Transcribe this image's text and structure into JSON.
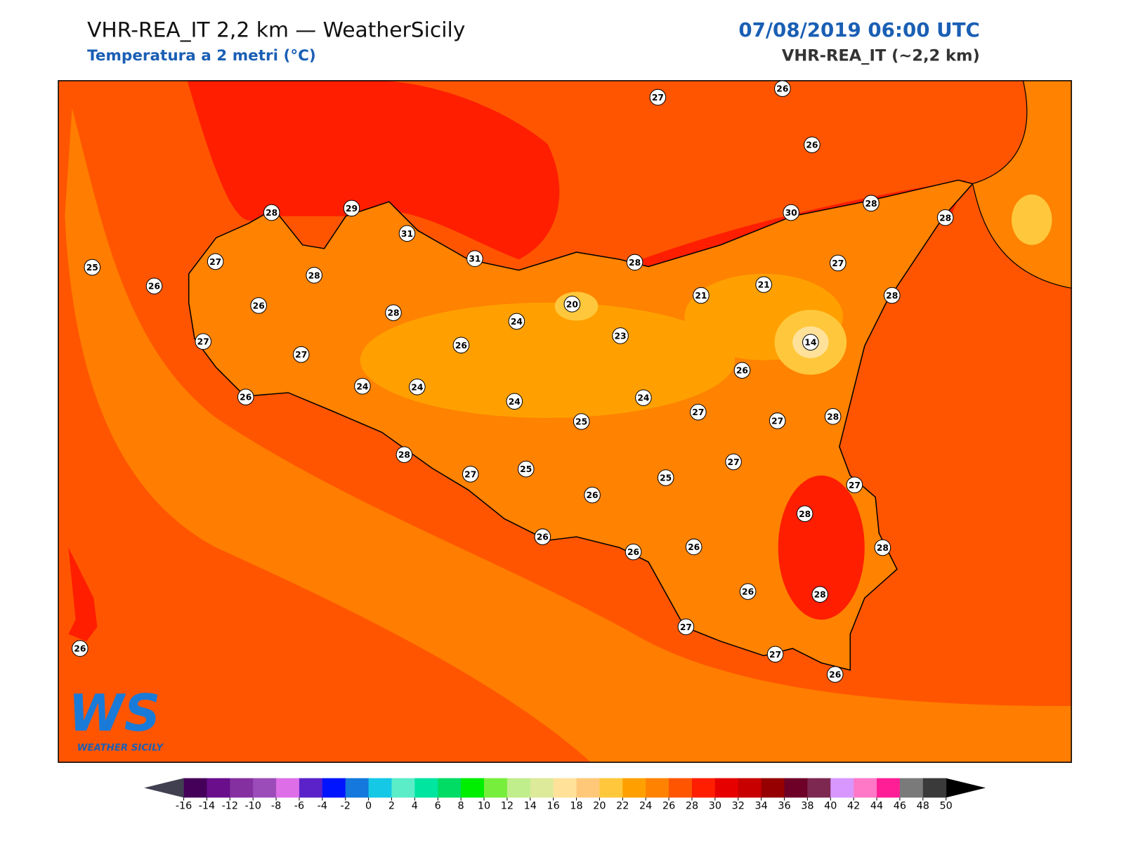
{
  "header": {
    "title": "VHR-REA_IT 2,2 km — WeatherSicily",
    "subtitle": "Temperatura a 2 metri (°C)",
    "datetime": "07/08/2019 06:00 UTC",
    "model": "VHR-REA_IT (~2,2 km)"
  },
  "stations": [
    27,
    26,
    26,
    28,
    29,
    31,
    31,
    30,
    28,
    28,
    25,
    27,
    26,
    28,
    28,
    27,
    26,
    28,
    20,
    24,
    21,
    21,
    28,
    23,
    14,
    27,
    27,
    26,
    24,
    24,
    26,
    26,
    24,
    24,
    25,
    27,
    27,
    28,
    28,
    27,
    25,
    27,
    25,
    26,
    27,
    28,
    26,
    26,
    26,
    28,
    26,
    28,
    27,
    26,
    27,
    26
  ],
  "logo": {
    "mark": "WS",
    "name": "WEATHER SICILY"
  },
  "colorbar": {
    "ticks": [
      -16,
      -14,
      -12,
      -10,
      -8,
      -6,
      -4,
      -2,
      0,
      2,
      4,
      6,
      8,
      10,
      12,
      14,
      16,
      18,
      20,
      22,
      24,
      26,
      28,
      30,
      32,
      34,
      36,
      38,
      40,
      42,
      44,
      46,
      48,
      50
    ],
    "colors": [
      "#45005a",
      "#6a0e8c",
      "#8430a0",
      "#9c4cb8",
      "#dd6ee8",
      "#5a22c8",
      "#0014ff",
      "#1478dc",
      "#14c8e6",
      "#5aedc8",
      "#00e6a0",
      "#00dc64",
      "#00ee00",
      "#78ee3c",
      "#c0ee8c",
      "#dcea9a",
      "#ffe19a",
      "#ffc878",
      "#ffc83c",
      "#ffa000",
      "#ff8200",
      "#ff5500",
      "#ff1e00",
      "#e60000",
      "#c80000",
      "#960000",
      "#6e0028",
      "#7c2850",
      "#d896ff",
      "#ff78c8",
      "#ff1e96",
      "#7a7a7a",
      "#3a3a3a"
    ],
    "under_color": "#404050",
    "over_color": "#000000"
  }
}
